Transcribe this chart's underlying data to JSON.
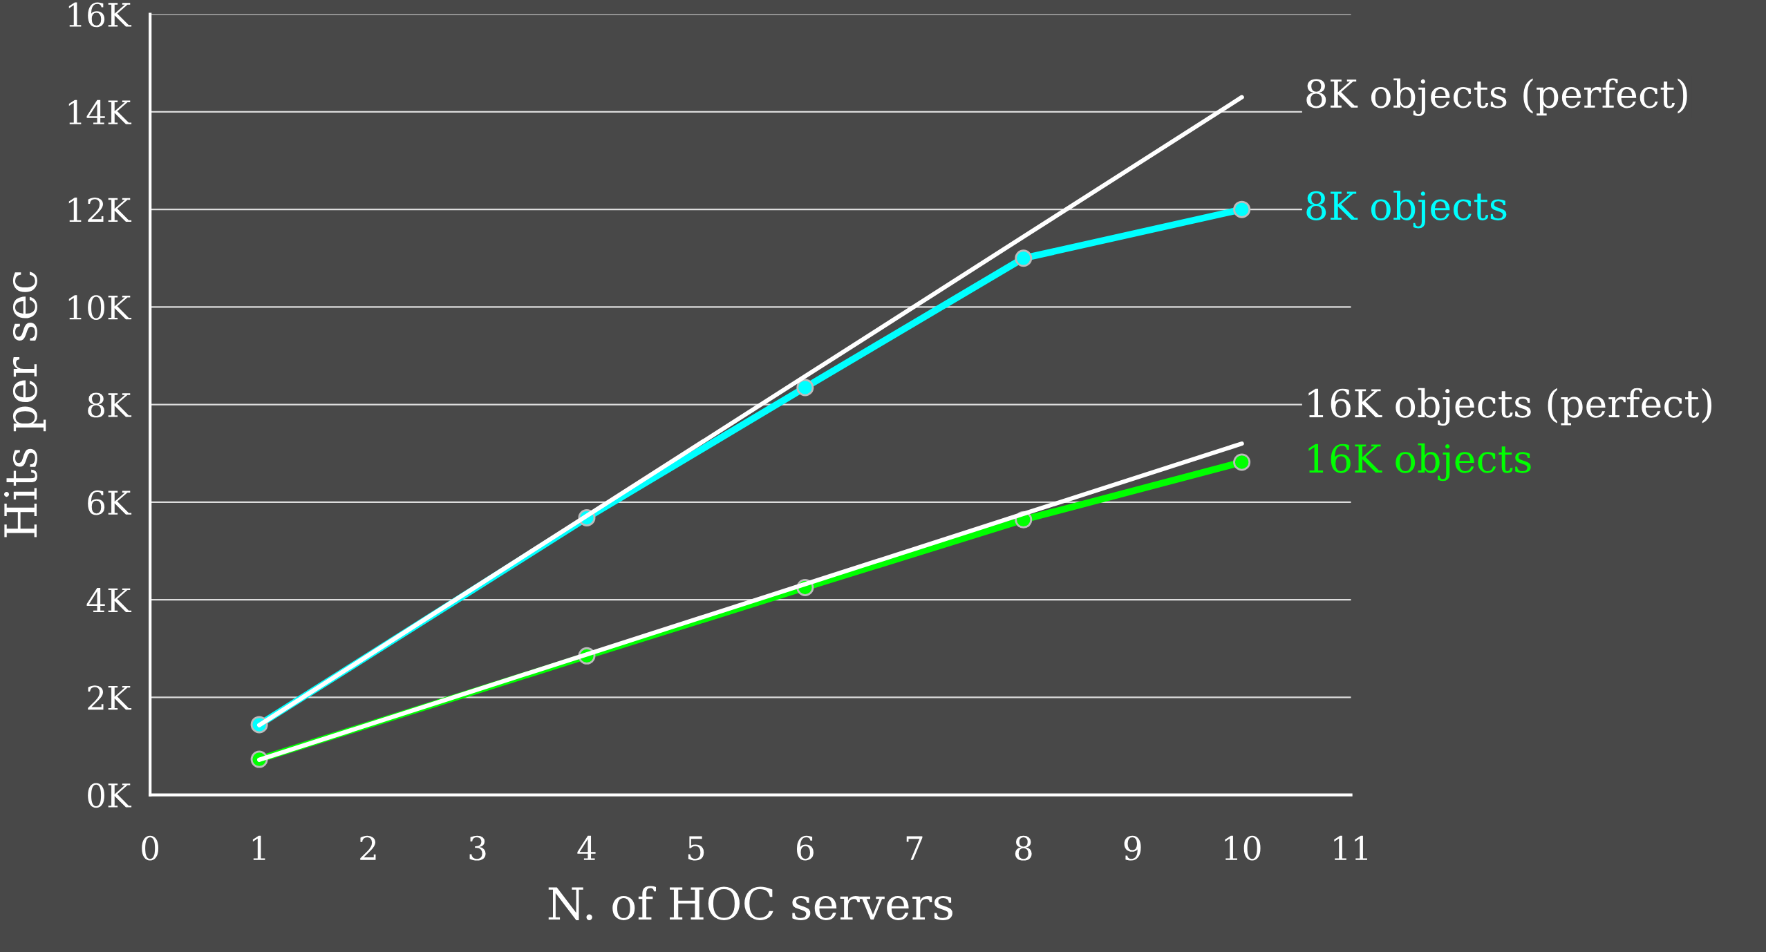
{
  "chart_data": {
    "type": "line",
    "xlabel": "N. of HOC servers",
    "ylabel": "Hits per sec",
    "x": [
      1,
      4,
      6,
      8,
      10
    ],
    "series": [
      {
        "name": "8K objects (perfect)",
        "color": "#ffffff",
        "values": [
          1430,
          5720,
          8580,
          11440,
          14300
        ],
        "marker": "none"
      },
      {
        "name": "8K objects",
        "color": "#00ffff",
        "values": [
          1440,
          5680,
          8350,
          11000,
          12000
        ],
        "marker": "circle"
      },
      {
        "name": "16K objects (perfect)",
        "color": "#ffffff",
        "values": [
          720,
          2880,
          4320,
          5760,
          7200
        ],
        "marker": "none"
      },
      {
        "name": "16K objects",
        "color": "#00ff00",
        "values": [
          730,
          2850,
          4250,
          5640,
          6820
        ],
        "marker": "circle"
      }
    ],
    "xlim": [
      0,
      11
    ],
    "xticks": [
      0,
      1,
      2,
      3,
      4,
      5,
      6,
      7,
      8,
      9,
      10,
      11
    ],
    "ylim": [
      0,
      16000
    ],
    "yticks": [
      {
        "value": 0,
        "label": "0K"
      },
      {
        "value": 2000,
        "label": "2K"
      },
      {
        "value": 4000,
        "label": "4K"
      },
      {
        "value": 6000,
        "label": "6K"
      },
      {
        "value": 8000,
        "label": "8K"
      },
      {
        "value": 10000,
        "label": "10K"
      },
      {
        "value": 12000,
        "label": "12K"
      },
      {
        "value": 14000,
        "label": "14K"
      },
      {
        "value": 16000,
        "label": "16K"
      }
    ],
    "grid": "y",
    "legend": false,
    "line_style": "solid"
  }
}
